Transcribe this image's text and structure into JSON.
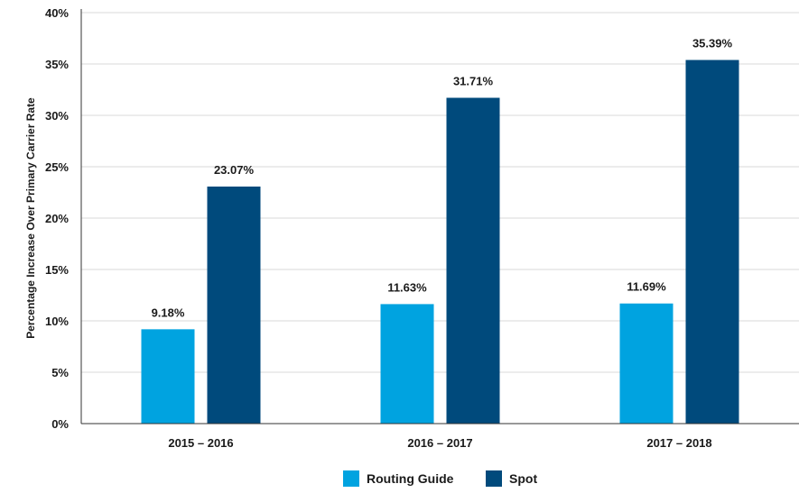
{
  "chart_data": {
    "type": "bar",
    "title": "",
    "xlabel": "",
    "ylabel": "Percentage Increase Over Primary Carrier Rate",
    "categories": [
      "2015 – 2016",
      "2016 – 2017",
      "2017 – 2018"
    ],
    "series": [
      {
        "name": "Routing Guide",
        "color": "#00a3e0",
        "values": [
          9.18,
          11.63,
          11.69
        ],
        "labels": [
          "9.18%",
          "11.63%",
          "11.69%"
        ]
      },
      {
        "name": "Spot",
        "color": "#004a7c",
        "values": [
          23.07,
          31.71,
          35.39
        ],
        "labels": [
          "23.07%",
          "31.71%",
          "35.39%"
        ]
      }
    ],
    "ylim": [
      0,
      40
    ],
    "yticks": [
      0,
      5,
      10,
      15,
      20,
      25,
      30,
      35,
      40
    ],
    "ytick_labels": [
      "0%",
      "5%",
      "10%",
      "15%",
      "20%",
      "25%",
      "30%",
      "35%",
      "40%"
    ],
    "grid": true,
    "legend_position": "bottom-center"
  }
}
